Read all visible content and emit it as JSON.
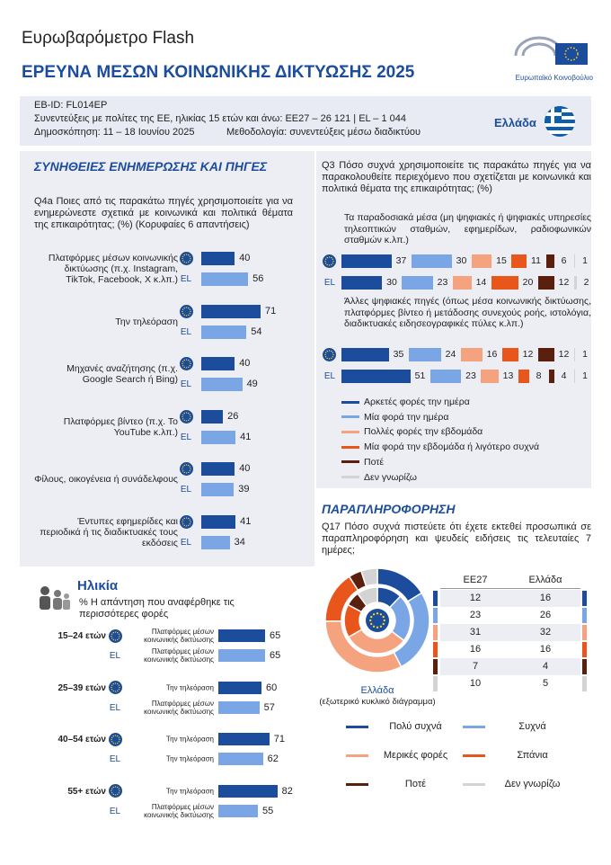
{
  "header": {
    "kicker": "Ευρωβαρόμετρο Flash",
    "title": "ΕΡΕΥΝΑ ΜΕΣΩΝ ΚΟΙΝΩΝΙΚΗΣ ΔΙΚΤΥΩΣΗΣ 2025",
    "logo_text": "Ευρωπαϊκό Κοινοβούλιο"
  },
  "info": {
    "id": "EB-ID: FL014EP",
    "interviews": "Συνεντεύξεις με πολίτες της ΕΕ, ηλικίας 15 ετών και άνω: ΕΕ27 – 26 121 | EL – 1 044",
    "fieldwork": "Δημοσκόπηση: 11 – 18 Ιουνίου 2025",
    "methodology": "Μεθοδολογία: συνεντεύξεις μέσω διαδικτύου",
    "country": "Ελλάδα"
  },
  "habits": {
    "heading": "ΣΥΝΗΘΕΙΕΣ ΕΝΗΜΕΡΩΣΗΣ ΚΑΙ ΠΗΓΕΣ",
    "chart": {
      "type": "bar",
      "question": "Q4a Ποιες από τις παρακάτω πηγές χρησιμοποιείτε για να ενημερώνεστε σχετικά με κοινωνικά και πολιτικά θέματα της επικαιρότητας; (%) (Κορυφαίες 6 απαντήσεις)",
      "categories": [
        "Πλατφόρμες μέσων κοινωνικής δικτύωσης (π.χ. Instagram, TikTok, Facebook, X κ.λπ.)",
        "Την τηλεόραση",
        "Μηχανές αναζήτησης (π.χ. Google Search ή Bing)",
        "Πλατφόρμες βίντεο (π.χ. Το YouTube κ.λπ.)",
        "Φίλους, οικογένεια ή συνάδελφους",
        "Έντυπες εφημερίδες και περιοδικά ή τις διαδικτυακές τους εκδόσεις"
      ],
      "series": [
        {
          "color": "#1c4c9c",
          "values": [
            40,
            71,
            40,
            26,
            40,
            41
          ]
        },
        {
          "name": "EL",
          "color": "#7aa6e6",
          "values": [
            56,
            54,
            49,
            41,
            39,
            34
          ]
        }
      ]
    }
  },
  "age": {
    "heading": "Ηλικία",
    "chart": {
      "type": "bar",
      "subtitle": "% Η απάντηση που αναφέρθηκε τις περισσότερες φορές",
      "categories": [
        "15–24 ετών",
        "25–39 ετών",
        "40–54 ετών",
        "55+ ετών"
      ],
      "series": [
        {
          "color": "#1c4c9c",
          "labels": [
            "Πλατφόρμες μέσων κοινωνικής δικτύωσης",
            "Την τηλεόραση",
            "Την τηλεόραση",
            "Την τηλεόραση"
          ],
          "values": [
            65,
            60,
            71,
            82
          ]
        },
        {
          "name": "EL",
          "color": "#7aa6e6",
          "labels": [
            "Πλατφόρμες μέσων κοινωνικής δικτύωσης",
            "Πλατφόρμες μέσων κοινωνικής δικτύωσης",
            "Την τηλεόραση",
            "Πλατφόρμες μέσων κοινωνικής δικτύωσης"
          ],
          "values": [
            65,
            57,
            62,
            55
          ]
        }
      ]
    }
  },
  "frequency": {
    "chart": {
      "type": "stacked-bar",
      "question": "Q3 Πόσο συχνά χρησιμοποιείτε τις παρακάτω πηγές για να παρακολουθείτε περιεχόμενο που σχετίζεται με κοινωνικά και πολιτικά θέματα της επικαιρότητας; (%)",
      "groups": [
        "Τα παραδοσιακά μέσα (μη ψηφιακές ή ψηφιακές υπηρεσίες τηλεοπτικών σταθμών, εφημερίδων, ραδιοφωνικών σταθμών κ.λπ.)",
        "Άλλες ψηφιακές πηγές (όπως μέσα κοινωνικής δικτύωσης, πλατφόρμες βίντεο ή μετάδοσης συνεχούς ροής, ιστολόγια, διαδικτυακές ειδησεογραφικές πύλες κ.λπ.)"
      ],
      "categories": [
        null,
        "EL",
        null,
        "EL"
      ],
      "series": [
        {
          "name": "Αρκετές φορές την ημέρα",
          "color": "#1c4c9c",
          "values": [
            37,
            30,
            35,
            51
          ]
        },
        {
          "name": "Μία φορά την ημέρα",
          "color": "#7aa6e6",
          "values": [
            30,
            23,
            24,
            23
          ]
        },
        {
          "name": "Πολλές φορές την εβδομάδα",
          "color": "#f5a27f",
          "values": [
            15,
            14,
            16,
            13
          ]
        },
        {
          "name": "Μία φορά την εβδομάδα ή λιγότερο συχνά",
          "color": "#e9561c",
          "values": [
            11,
            20,
            12,
            8
          ]
        },
        {
          "name": "Ποτέ",
          "color": "#5b1f0d",
          "values": [
            6,
            12,
            12,
            4
          ]
        },
        {
          "name": "Δεν γνωρίζω",
          "color": "#d3d3d3",
          "values": [
            1,
            2,
            1,
            1
          ]
        }
      ]
    }
  },
  "misinformation": {
    "heading": "ΠΑΡΑΠΛΗΡΟΦΟΡΗΣΗ",
    "chart": {
      "type": "donut",
      "question": "Q17 Πόσο συχνά πιστεύετε ότι έχετε εκτεθεί προσωπικά σε παραπληροφόρηση και ψευδείς ειδήσεις τις τελευταίες 7 ημέρες;",
      "caption_note": "(εξωτερικό κυκλικό διάγραμμα)",
      "categories": [
        "Πολύ συχνά",
        "Συχνά",
        "Μερικές φορές",
        "Σπάνια",
        "Ποτέ",
        "Δεν γνωρίζω"
      ],
      "colors": [
        "#1c4c9c",
        "#7aa6e6",
        "#f5a27f",
        "#e9561c",
        "#5b1f0d",
        "#d3d3d3"
      ],
      "series": [
        {
          "name": "ΕΕ27",
          "values": [
            12,
            23,
            31,
            16,
            7,
            10
          ]
        },
        {
          "name": "Ελλάδα",
          "values": [
            16,
            26,
            32,
            16,
            4,
            5
          ]
        }
      ]
    }
  }
}
